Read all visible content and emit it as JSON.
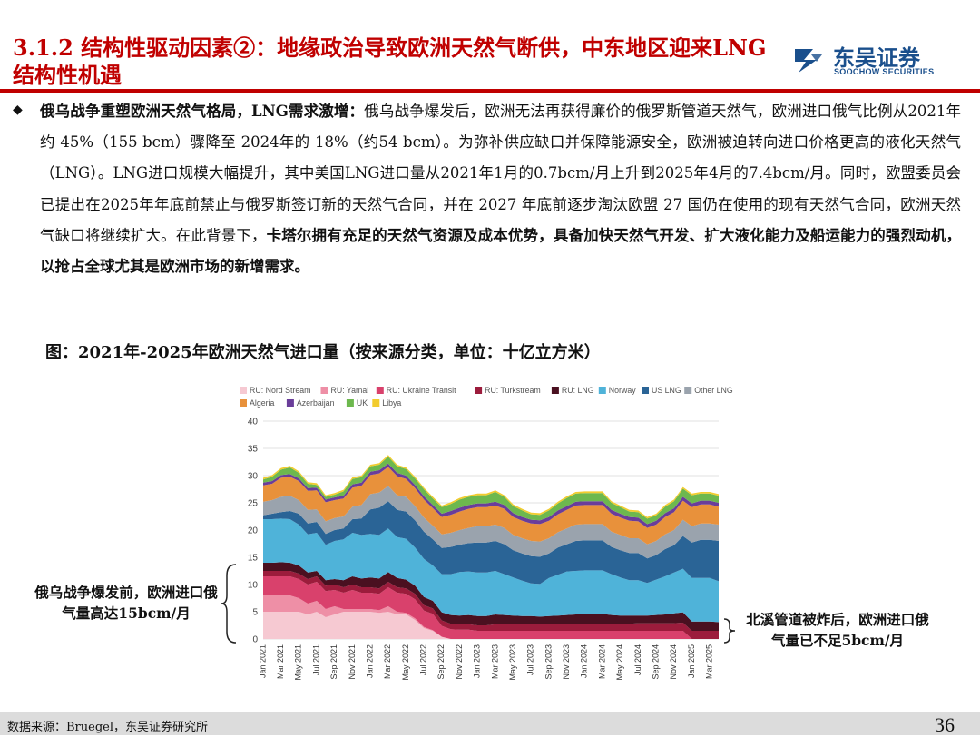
{
  "header": {
    "title": "3.1.2 结构性驱动因素②：地缘政治导致欧洲天然气断供，中东地区迎来LNG结构性机遇",
    "logo_cn": "东吴证券",
    "logo_en": "SOOCHOW SECURITIES"
  },
  "body": {
    "bullet": "◆",
    "lead_bold": "俄乌战争重塑欧洲天然气格局，LNG需求激增：",
    "text1": "俄乌战争爆发后，欧洲无法再获得廉价的俄罗斯管道天然气，欧洲进口俄气比例从2021年约 45%（155 bcm）骤降至 2024年的 18%（约54 bcm）。为弥补供应缺口并保障能源安全，欧洲被迫转向进口价格更高的液化天然气（LNG）。LNG进口规模大幅提升，其中美国LNG进口量从2021年1月的0.7bcm/月上升到2025年4月的7.4bcm/月。同时，欧盟委员会已提出在2025年年底前禁止与俄罗斯签订新的天然气合同，并在 2027 年底前逐步淘汰欧盟 27 国仍在使用的现有天然气合同，欧洲天然气缺口将继续扩大。在此背景下，",
    "tail_bold": "卡塔尔拥有充足的天然气资源及成本优势，具备加快天然气开发、扩大液化能力及船运能力的强烈动机，以抢占全球尤其是欧洲市场的新增需求。"
  },
  "figure": {
    "title": "图：2021年-2025年欧洲天然气进口量（按来源分类，单位：十亿立方米）"
  },
  "annotations": {
    "left": "俄乌战争爆发前，欧洲进口俄气量高达15bcm/月",
    "right": "北溪管道被炸后，欧洲进口俄气量已不足5bcm/月"
  },
  "footer": {
    "source": "数据来源：Bruegel，东吴证券研究所",
    "page": "36"
  },
  "chart_data": {
    "type": "area",
    "stacked": true,
    "ylim": [
      0,
      40
    ],
    "yticks": [
      0,
      5,
      10,
      15,
      20,
      25,
      30,
      35,
      40
    ],
    "x": [
      "Jan 2021",
      "Feb 2021",
      "Mar 2021",
      "Apr 2021",
      "May 2021",
      "Jun 2021",
      "Jul 2021",
      "Aug 2021",
      "Sep 2021",
      "Oct 2021",
      "Nov 2021",
      "Dec 2021",
      "Jan 2022",
      "Feb 2022",
      "Mar 2022",
      "Apr 2022",
      "May 2022",
      "Jun 2022",
      "Jul 2022",
      "Aug 2022",
      "Sep 2022",
      "Oct 2022",
      "Nov 2022",
      "Dec 2022",
      "Jan 2023",
      "Feb 2023",
      "Mar 2023",
      "Apr 2023",
      "May 2023",
      "Jun 2023",
      "Jul 2023",
      "Aug 2023",
      "Sep 2023",
      "Oct 2023",
      "Nov 2023",
      "Dec 2023",
      "Jan 2024",
      "Feb 2024",
      "Mar 2024",
      "Apr 2024",
      "May 2024",
      "Jun 2024",
      "Jul 2024",
      "Aug 2024",
      "Sep 2024",
      "Oct 2024",
      "Nov 2024",
      "Dec 2024",
      "Jan 2025",
      "Feb 2025",
      "Mar 2025",
      "Apr 2025"
    ],
    "xtick_labels": [
      "Jan 2021",
      "Mar 2021",
      "May 2021",
      "Jul 2021",
      "Sep 2021",
      "Nov 2021",
      "Jan 2022",
      "Mar 2022",
      "May 2022",
      "Jul 2022",
      "Sep 2022",
      "Nov 2022",
      "Jan 2023",
      "Mar 2023",
      "May 2023",
      "Jul 2023",
      "Sep 2023",
      "Nov 2023",
      "Jan 2024",
      "Mar 2024",
      "May 2024",
      "Jul 2024",
      "Sep 2024",
      "Nov 2024",
      "Jan 2025",
      "Mar 2025"
    ],
    "legend_position": "top",
    "series": [
      {
        "name": "RU: Nord Stream",
        "color": "#f6c9d2",
        "values": [
          5,
          5,
          5,
          5,
          5,
          4.5,
          5,
          4,
          4.5,
          5,
          5,
          5,
          5,
          4.8,
          5,
          4.5,
          4.5,
          3.5,
          2,
          1.5,
          0.4,
          0,
          0,
          0,
          0,
          0,
          0,
          0,
          0,
          0,
          0,
          0,
          0,
          0,
          0,
          0,
          0,
          0,
          0,
          0,
          0,
          0,
          0,
          0,
          0,
          0,
          0,
          0,
          0,
          0,
          0,
          0
        ]
      },
      {
        "name": "RU: Yamal",
        "color": "#ee8fa6",
        "values": [
          3,
          3,
          3,
          3,
          2.5,
          2,
          2,
          1.5,
          1.5,
          0.5,
          0.5,
          0.5,
          0.5,
          0.5,
          1,
          0.5,
          0.3,
          0.3,
          0.2,
          0.1,
          0,
          0,
          0,
          0,
          0,
          0,
          0,
          0,
          0,
          0,
          0,
          0,
          0,
          0,
          0,
          0,
          0,
          0,
          0,
          0,
          0,
          0,
          0,
          0,
          0,
          0,
          0,
          0,
          0,
          0,
          0,
          0
        ]
      },
      {
        "name": "RU: Ukraine Transit",
        "color": "#d9416c",
        "values": [
          3.5,
          3.5,
          3.5,
          3.5,
          3.5,
          3.5,
          3.5,
          3.3,
          3,
          3,
          3.5,
          3,
          3,
          3,
          3.5,
          3.5,
          3.5,
          3.5,
          3,
          3,
          2,
          1.8,
          1.7,
          1.7,
          1.5,
          1.5,
          1.5,
          1.5,
          1.5,
          1.5,
          1.5,
          1.5,
          1.5,
          1.5,
          1.5,
          1.5,
          1.5,
          1.5,
          1.5,
          1.5,
          1.5,
          1.5,
          1.5,
          1.5,
          1.5,
          1.5,
          1.5,
          1.5,
          0,
          0,
          0,
          0
        ]
      },
      {
        "name": "RU: Turkstream",
        "color": "#9c1c3c",
        "values": [
          1,
          1,
          1,
          1,
          1,
          1,
          1,
          1,
          1,
          1,
          1,
          1,
          1,
          1,
          1,
          1,
          1,
          1,
          1,
          1,
          1,
          1,
          1,
          1,
          1,
          1,
          1.2,
          1.2,
          1.2,
          1.2,
          1.2,
          1.2,
          1.2,
          1.2,
          1.2,
          1.2,
          1.3,
          1.3,
          1.3,
          1.3,
          1.3,
          1.3,
          1.4,
          1.4,
          1.4,
          1.4,
          1.4,
          1.5,
          1.5,
          1.5,
          1.5,
          1.5
        ]
      },
      {
        "name": "RU: LNG",
        "color": "#4a1020",
        "values": [
          1.5,
          1.5,
          1.6,
          1.5,
          1.5,
          1.2,
          1,
          1,
          1,
          1.3,
          1.5,
          1.6,
          1.8,
          1.8,
          1.8,
          1.7,
          1.6,
          1.5,
          1.5,
          1.4,
          1.5,
          1.6,
          1.6,
          1.7,
          1.7,
          1.7,
          1.8,
          1.7,
          1.6,
          1.5,
          1.5,
          1.4,
          1.5,
          1.6,
          1.7,
          1.8,
          1.8,
          1.8,
          1.8,
          1.6,
          1.5,
          1.5,
          1.4,
          1.4,
          1.5,
          1.6,
          1.8,
          1.9,
          1.7,
          1.7,
          1.7,
          1.6
        ]
      },
      {
        "name": "Norway",
        "color": "#4fb3d9",
        "values": [
          8,
          8,
          8,
          8,
          7.5,
          7,
          7,
          6.5,
          7,
          7.5,
          8,
          8,
          8,
          8,
          8,
          7.5,
          7.5,
          7,
          7,
          6.5,
          7,
          7.5,
          8,
          8,
          8,
          8,
          8,
          7.5,
          7,
          6.5,
          6,
          6,
          7,
          7.5,
          8,
          8,
          8,
          8,
          8,
          7.5,
          7,
          6.5,
          6.5,
          6,
          6.5,
          7,
          7.5,
          8,
          8,
          8,
          8,
          7.5
        ]
      },
      {
        "name": "US LNG",
        "color": "#2a6496",
        "values": [
          0.7,
          1,
          1.2,
          1.5,
          2,
          2,
          2,
          2,
          2,
          2,
          2.5,
          3,
          4.5,
          5,
          5,
          5,
          5,
          5,
          5,
          4.8,
          4.8,
          5,
          5,
          5.2,
          5.5,
          5.5,
          5.5,
          5.5,
          5,
          5,
          5,
          5,
          4.5,
          5,
          5,
          5.5,
          5.5,
          5.5,
          5.5,
          5,
          5,
          5,
          5,
          4.5,
          4.5,
          5,
          5,
          6,
          6.5,
          7,
          7,
          7.4
        ]
      },
      {
        "name": "Other LNG",
        "color": "#9aa3ad",
        "values": [
          2.5,
          2.5,
          2.8,
          2.8,
          2.5,
          2.5,
          2.3,
          2.3,
          2.2,
          2.2,
          2.3,
          2.5,
          2.8,
          2.8,
          2.8,
          2.7,
          2.7,
          2.6,
          2.6,
          2.5,
          2.5,
          2.6,
          2.7,
          2.8,
          3,
          3,
          3,
          3,
          2.8,
          2.8,
          2.8,
          2.8,
          2.8,
          2.8,
          2.9,
          3,
          3,
          3,
          3,
          2.8,
          2.8,
          2.7,
          2.7,
          2.6,
          2.6,
          2.7,
          2.8,
          3,
          3,
          3,
          3,
          3
        ]
      },
      {
        "name": "Algeria",
        "color": "#e8913b",
        "values": [
          3,
          3,
          3.5,
          3.5,
          3.5,
          3.5,
          3.5,
          3.5,
          3.3,
          3.3,
          3.5,
          3.5,
          3.5,
          3.5,
          3.5,
          3.5,
          3.3,
          3.3,
          3.3,
          3.2,
          3.2,
          3.3,
          3.4,
          3.5,
          3.5,
          3.5,
          3.5,
          3.5,
          3.3,
          3.2,
          3.2,
          3.2,
          3.2,
          3.3,
          3.4,
          3.5,
          3.5,
          3.5,
          3.5,
          3.3,
          3.2,
          3.2,
          3.1,
          3,
          3,
          3.2,
          3.3,
          3.5,
          3.5,
          3.5,
          3.5,
          3.3
        ]
      },
      {
        "name": "Azerbaijan",
        "color": "#6a3d9a",
        "values": [
          0.5,
          0.5,
          0.5,
          0.5,
          0.5,
          0.5,
          0.5,
          0.5,
          0.5,
          0.5,
          0.6,
          0.6,
          0.6,
          0.6,
          0.6,
          0.6,
          0.6,
          0.6,
          0.6,
          0.6,
          0.6,
          0.7,
          0.7,
          0.7,
          0.7,
          0.7,
          0.7,
          0.7,
          0.7,
          0.7,
          0.7,
          0.7,
          0.7,
          0.7,
          0.7,
          0.7,
          0.7,
          0.7,
          0.7,
          0.7,
          0.7,
          0.7,
          0.7,
          0.7,
          0.7,
          0.7,
          0.7,
          0.7,
          0.7,
          0.7,
          0.7,
          0.7
        ]
      },
      {
        "name": "UK",
        "color": "#6db84e",
        "values": [
          0.6,
          0.8,
          1,
          1.2,
          1,
          0.8,
          0.5,
          0.5,
          0.5,
          0.8,
          1,
          1,
          1,
          1,
          1.3,
          1.2,
          1.2,
          1.2,
          1.3,
          1.2,
          1.2,
          1.3,
          1.5,
          1.5,
          1.5,
          1.5,
          1.8,
          1.5,
          1.3,
          1.2,
          1,
          1,
          1.2,
          1.3,
          1.5,
          1.5,
          1.5,
          1.5,
          1.5,
          1.3,
          1.2,
          1,
          1,
          1,
          1,
          1.2,
          1.3,
          1.5,
          1.5,
          1.3,
          1.3,
          1.3
        ]
      },
      {
        "name": "Libya",
        "color": "#f2cc2e",
        "values": [
          0.3,
          0.3,
          0.3,
          0.3,
          0.3,
          0.3,
          0.3,
          0.3,
          0.3,
          0.3,
          0.3,
          0.3,
          0.3,
          0.3,
          0.3,
          0.3,
          0.3,
          0.3,
          0.3,
          0.3,
          0.3,
          0.3,
          0.3,
          0.3,
          0.3,
          0.3,
          0.3,
          0.3,
          0.3,
          0.3,
          0.3,
          0.3,
          0.3,
          0.3,
          0.3,
          0.3,
          0.3,
          0.3,
          0.3,
          0.3,
          0.3,
          0.3,
          0.3,
          0.3,
          0.3,
          0.3,
          0.3,
          0.3,
          0.3,
          0.3,
          0.3,
          0.3
        ]
      }
    ]
  }
}
